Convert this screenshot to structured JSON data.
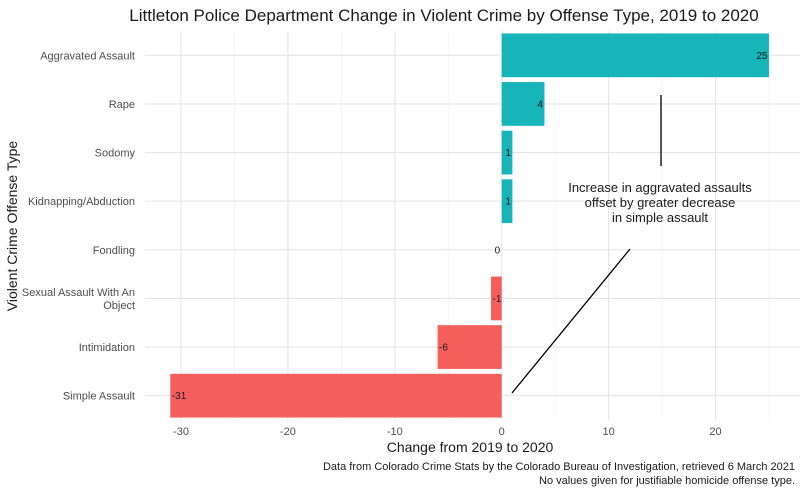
{
  "chart_data": {
    "type": "bar",
    "orientation": "horizontal",
    "title": "Littleton Police Department Change in Violent Crime by Offense Type, 2019 to 2020",
    "xlabel": "Change from 2019 to 2020",
    "ylabel": "Violent Crime Offense Type",
    "categories": [
      "Aggravated Assault",
      "Rape",
      "Sodomy",
      "Kidnapping/Abduction",
      "Fondling",
      "Sexual Assault With An Object",
      "Intimidation",
      "Simple Assault"
    ],
    "values": [
      25,
      4,
      1,
      1,
      0,
      -1,
      -6,
      -31
    ],
    "value_labels": [
      "25",
      "4",
      "1",
      "1",
      "0",
      "-1",
      "-6",
      "-31"
    ],
    "xlim": [
      -31,
      25
    ],
    "x_ticks": [
      -30,
      -20,
      -10,
      0,
      10,
      20
    ],
    "x_tick_labels": [
      "-30",
      "-20",
      "-10",
      "0",
      "10",
      "20"
    ],
    "grid": true,
    "legend": "none",
    "colors": {
      "positive": "#17b4b9",
      "negative": "#f45f5b"
    },
    "annotation": {
      "lines": [
        "Increase in aggravated assaults",
        "offset by greater decrease",
        "in simple assault"
      ]
    },
    "caption": [
      "Data from Colorado Crime Stats by the Colorado Bureau of Investigation, retrieved 6 March 2021",
      "No values given for justifiable homicide offense type."
    ]
  }
}
